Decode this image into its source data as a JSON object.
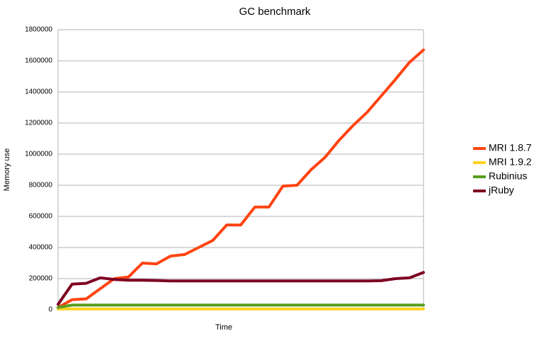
{
  "chart_data": {
    "type": "line",
    "title": "GC benchmark",
    "x_label": "Time",
    "y_label": "Memory use",
    "categories": [
      null,
      null,
      null,
      null,
      null,
      null,
      null,
      null,
      null,
      null,
      null,
      null,
      null,
      null,
      null,
      null,
      null,
      null,
      null,
      null,
      null,
      null,
      null,
      null,
      null,
      null,
      null
    ],
    "series": [
      {
        "name": "MRI 1.8.7",
        "color": "#ff4411",
        "values": [
          15000,
          65000,
          70000,
          135000,
          200000,
          210000,
          300000,
          295000,
          345000,
          355000,
          400000,
          445000,
          545000,
          545000,
          660000,
          660000,
          795000,
          800000,
          900000,
          980000,
          1090000,
          1185000,
          1270000,
          1375000,
          1480000,
          1590000,
          1670000
        ]
      },
      {
        "name": "MRI 1.9.2",
        "color": "#ffd320",
        "values": [
          5000,
          5000,
          5000,
          5000,
          5000,
          5000,
          5000,
          5000,
          5000,
          5000,
          5000,
          5000,
          5000,
          5000,
          5000,
          5000,
          5000,
          5000,
          5000,
          5000,
          5000,
          5000,
          5000,
          5000,
          5000,
          5000,
          5000
        ]
      },
      {
        "name": "Rubinius",
        "color": "#579d1c",
        "values": [
          15000,
          30000,
          30000,
          30000,
          30000,
          30000,
          30000,
          30000,
          30000,
          30000,
          30000,
          30000,
          30000,
          30000,
          30000,
          30000,
          30000,
          30000,
          30000,
          30000,
          30000,
          30000,
          30000,
          30000,
          30000,
          30000,
          30000
        ]
      },
      {
        "name": "jRuby",
        "color": "#7e0021",
        "values": [
          35000,
          165000,
          170000,
          205000,
          195000,
          190000,
          190000,
          188000,
          185000,
          185000,
          185000,
          185000,
          185000,
          185000,
          185000,
          185000,
          185000,
          185000,
          185000,
          185000,
          185000,
          185000,
          185000,
          187000,
          200000,
          205000,
          240000
        ]
      }
    ],
    "ylim": [
      0,
      1800000
    ],
    "yticks": [
      0,
      200000,
      400000,
      600000,
      800000,
      1000000,
      1200000,
      1400000,
      1600000,
      1800000
    ],
    "grid": true,
    "legend": "right"
  }
}
